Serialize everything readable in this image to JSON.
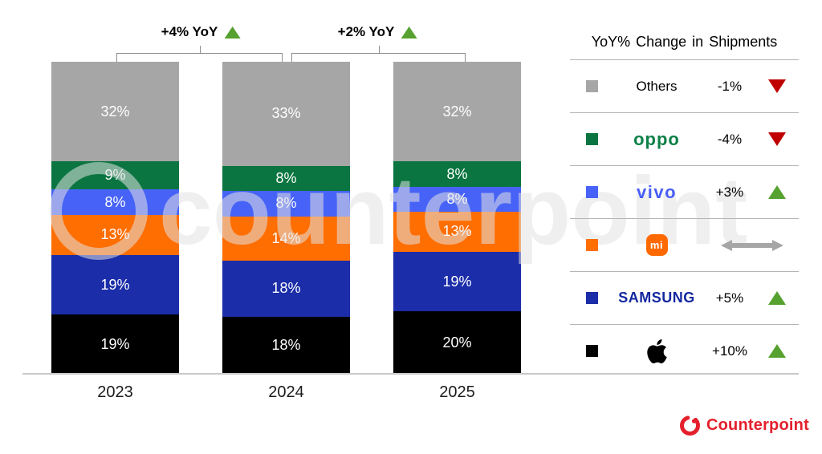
{
  "watermark": {
    "text": "counterpoint"
  },
  "chart_data": {
    "type": "bar",
    "stacked": true,
    "unit": "%",
    "categories": [
      "2023",
      "2024",
      "2025"
    ],
    "series": [
      {
        "name": "Apple",
        "color": "#000000",
        "values": [
          19,
          18,
          20
        ]
      },
      {
        "name": "Samsung",
        "color": "#1b2da8",
        "values": [
          19,
          18,
          19
        ]
      },
      {
        "name": "Xiaomi",
        "color": "#ff6e00",
        "values": [
          13,
          14,
          13
        ]
      },
      {
        "name": "vivo",
        "color": "#4763f7",
        "values": [
          8,
          8,
          8
        ]
      },
      {
        "name": "OPPO",
        "color": "#0a7540",
        "values": [
          9,
          8,
          8
        ]
      },
      {
        "name": "Others",
        "color": "#a6a6a6",
        "values": [
          32,
          33,
          32
        ]
      }
    ],
    "annotations": [
      {
        "label": "+4% YoY",
        "direction": "up",
        "between": [
          "2023",
          "2024"
        ]
      },
      {
        "label": "+2% YoY",
        "direction": "up",
        "between": [
          "2024",
          "2025"
        ]
      }
    ],
    "ylim": [
      0,
      100
    ],
    "grid": false,
    "legend_position": "right"
  },
  "legend": {
    "title": "YoY% Change in Shipments",
    "rows": [
      {
        "brand": "Others",
        "display": "text",
        "label": "Others",
        "swatch": "#a6a6a6",
        "logo_color": "#000000",
        "change": "-1%",
        "direction": "down"
      },
      {
        "brand": "OPPO",
        "display": "logo",
        "label": "oppo",
        "swatch": "#0a7540",
        "logo_color": "#0c8148",
        "change": "-4%",
        "direction": "down"
      },
      {
        "brand": "vivo",
        "display": "logo",
        "label": "vivo",
        "swatch": "#4763f7",
        "logo_color": "#4a5ef7",
        "change": "+3%",
        "direction": "up"
      },
      {
        "brand": "Xiaomi",
        "display": "mi-logo",
        "label": "mi",
        "swatch": "#ff6e00",
        "logo_color": "#ff6900",
        "change": "",
        "direction": "flat"
      },
      {
        "brand": "Samsung",
        "display": "logo",
        "label": "SAMSUNG",
        "swatch": "#1b2da8",
        "logo_color": "#1428a0",
        "change": "+5%",
        "direction": "up"
      },
      {
        "brand": "Apple",
        "display": "apple-logo",
        "label": "",
        "swatch": "#000000",
        "logo_color": "#000000",
        "change": "+10%",
        "direction": "up"
      }
    ],
    "colors": {
      "up": "#56a12f",
      "down": "#c00000",
      "flat": "#a6a6a6"
    }
  },
  "footer": {
    "brand": "Counterpoint",
    "color": "#e4202c"
  }
}
